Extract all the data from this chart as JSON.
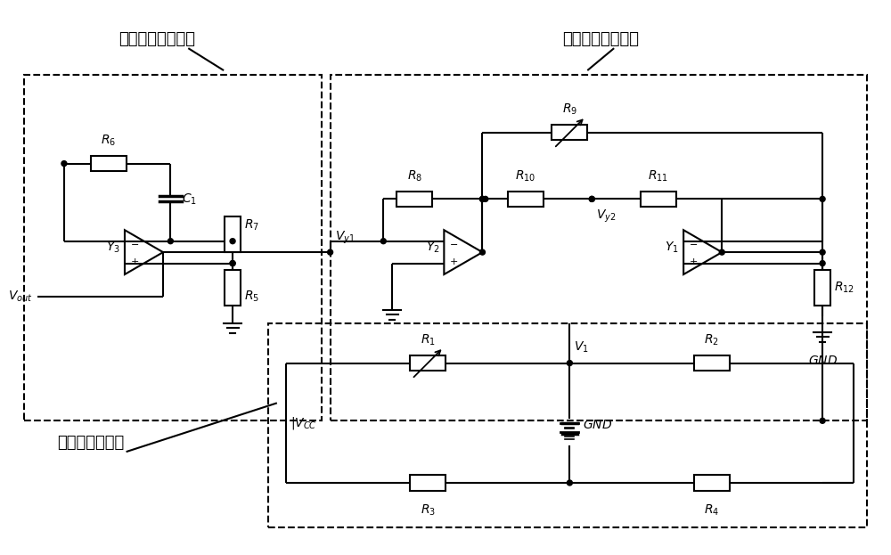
{
  "label1": "二级放大滤波电路",
  "label2": "一级放大滤波电路",
  "label3": "惠斯通电桥电路",
  "bg_color": "#ffffff"
}
